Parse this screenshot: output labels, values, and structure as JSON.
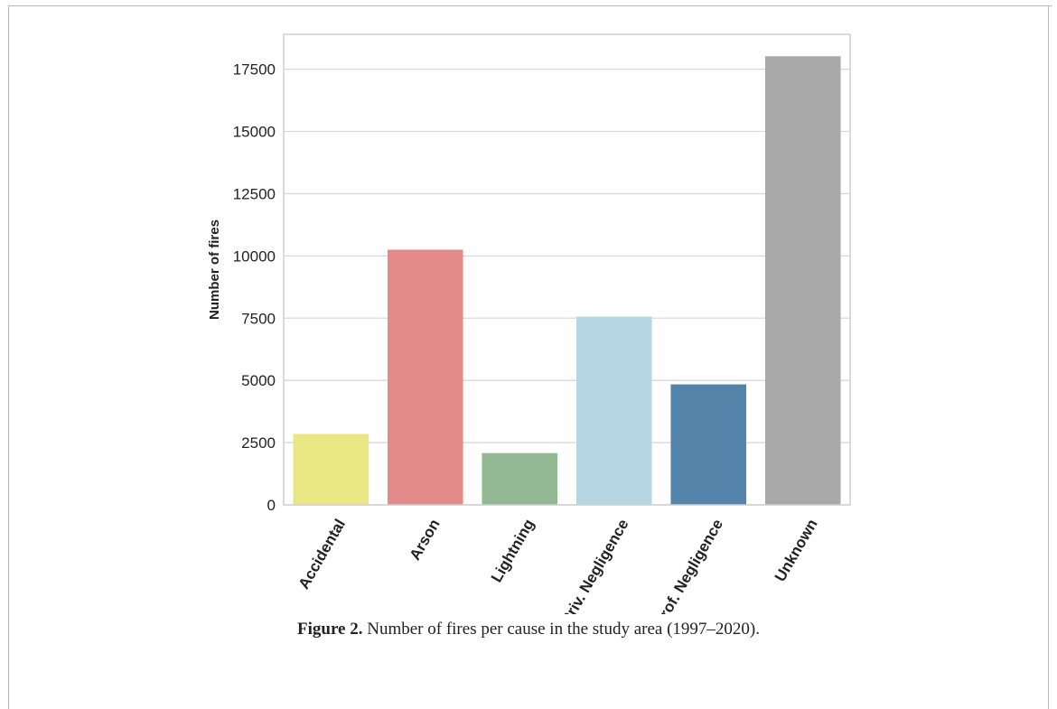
{
  "caption": {
    "label": "Figure 2.",
    "text": "Number of fires per cause in the study area (1997–2020)."
  },
  "chart_data": {
    "type": "bar",
    "title": "",
    "xlabel": "",
    "ylabel": "Number of fires",
    "categories": [
      "Accidental",
      "Arson",
      "Lightning",
      "Priv. Negligence",
      "Prof. Negligence",
      "Unknown"
    ],
    "values": [
      2850,
      10250,
      2080,
      7560,
      4840,
      18020
    ],
    "colors": [
      "#e8e784",
      "#e38b8a",
      "#93b994",
      "#b6d6e3",
      "#5484aa",
      "#a9a9a9"
    ],
    "yticks": [
      0,
      2500,
      5000,
      7500,
      10000,
      12500,
      15000,
      17500
    ],
    "ylim": [
      0,
      18900
    ],
    "grid": true,
    "legend": "none"
  }
}
